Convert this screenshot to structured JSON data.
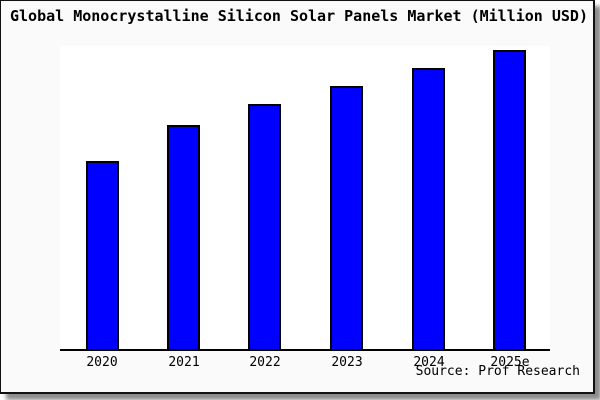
{
  "title": "Global Monocrystalline Silicon Solar Panels Market (Million USD)",
  "source_label": "Source: Prof Research",
  "colors": {
    "bar_fill": "#0000ff",
    "bar_border": "#000000",
    "axis": "#000000",
    "plot_background": "#ffffff",
    "card_background": "#fafafa",
    "card_border": "#111111",
    "text": "#000000"
  },
  "chart_data": {
    "type": "bar",
    "title": "Global Monocrystalline Silicon Solar Panels Market (Million USD)",
    "categories": [
      "2020",
      "2021",
      "2022",
      "2023",
      "2024",
      "2025e"
    ],
    "values": [
      63,
      75,
      82,
      88,
      94,
      100
    ],
    "values_note": "y-axis has no tick labels; values are relative heights with 2025e = 100",
    "xlabel": "",
    "ylabel": "",
    "ylim": [
      0,
      102
    ],
    "grid": false,
    "legend": false,
    "y_axis_labels_visible": false
  }
}
